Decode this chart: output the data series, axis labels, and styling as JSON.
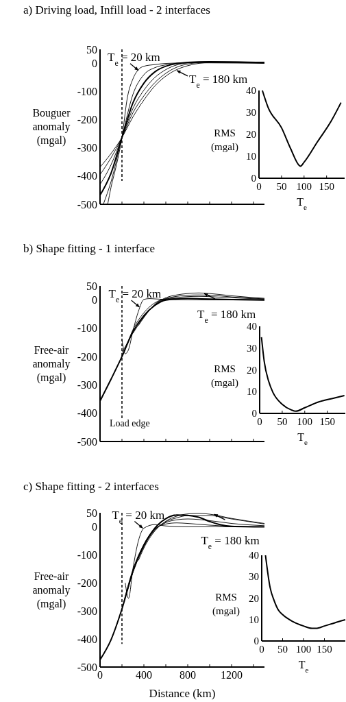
{
  "chart_data": [
    {
      "type": "line",
      "title": "a) Driving load, Infill load - 2 interfaces",
      "ylabel": "Bouguer anomaly (mgal)",
      "xlim": [
        0,
        1500
      ],
      "xticks": [
        {
          "value": 0,
          "label": null
        },
        {
          "value": 200,
          "label": null
        },
        {
          "value": 400,
          "label": null
        },
        {
          "value": 600,
          "label": null
        },
        {
          "value": 800,
          "label": null
        },
        {
          "value": 1000,
          "label": null
        },
        {
          "value": 1200,
          "label": null
        },
        {
          "value": 1400,
          "label": null
        }
      ],
      "ylim": [
        -500,
        50
      ],
      "yticks": [
        50,
        0,
        -100,
        -200,
        -300,
        -400,
        -500
      ],
      "tick_labels": "y",
      "series": [
        {
          "color": "#000000",
          "x": [
            0,
            100,
            200,
            300,
            400,
            500,
            600,
            800,
            1000,
            1500
          ],
          "values": [
            -468,
            -390,
            -263,
            -140,
            -70,
            -30,
            -10,
            4,
            6,
            3
          ]
        },
        {
          "color": "#000000",
          "x": [
            70,
            100,
            150,
            200,
            250,
            300,
            350,
            400,
            500,
            600,
            800,
            1000,
            1500
          ],
          "values": [
            -500,
            -440,
            -360,
            -263,
            -120,
            -55,
            -22,
            -10,
            -4,
            0,
            2,
            2,
            0
          ]
        },
        {
          "color": "#000000",
          "x": [
            30,
            100,
            200,
            300,
            400,
            500,
            600,
            800,
            1000,
            1500
          ],
          "values": [
            -500,
            -420,
            -263,
            -110,
            -40,
            -15,
            -5,
            3,
            4,
            2
          ]
        },
        {
          "color": "#000000",
          "x": [
            0,
            100,
            200,
            300,
            400,
            500,
            600,
            800,
            1000,
            1500
          ],
          "values": [
            -430,
            -360,
            -263,
            -160,
            -95,
            -50,
            -22,
            2,
            6,
            4
          ]
        },
        {
          "color": "#000000",
          "x": [
            0,
            100,
            200,
            300,
            400,
            500,
            600,
            800,
            1000,
            1500
          ],
          "values": [
            -395,
            -335,
            -263,
            -175,
            -115,
            -68,
            -35,
            -2,
            5,
            4
          ]
        },
        {
          "color": "#000000",
          "x": [
            0,
            100,
            200,
            300,
            400,
            500,
            600,
            800,
            1000,
            1500
          ],
          "values": [
            -368,
            -320,
            -263,
            -190,
            -130,
            -80,
            -45,
            -8,
            3,
            3
          ]
        }
      ],
      "ref_lines": [
        {
          "axis": "x",
          "value": 200,
          "line_style": "dashed"
        }
      ],
      "annotations": [
        {
          "text": "T$_{e}$ = 20 km",
          "x": 350,
          "y": -25
        },
        {
          "text": "T$_{e}$ = 180 km",
          "x": 700,
          "y": -25
        }
      ]
    },
    {
      "type": "line",
      "ylabel": "RMS (mgal)",
      "xlabel": "T$_{e}$",
      "xlim": [
        0,
        190
      ],
      "xticks": [
        0,
        50,
        100,
        150
      ],
      "ylim": [
        0,
        40
      ],
      "yticks": [
        0,
        10,
        20,
        30,
        40
      ],
      "series": [
        {
          "color": "#000000",
          "x": [
            7.5,
            20,
            50,
            70,
            90,
            92,
            100,
            130,
            160,
            182
          ],
          "values": [
            40,
            32.4,
            23,
            13.6,
            5.7,
            5.5,
            7.3,
            16.7,
            26,
            34.5
          ]
        }
      ]
    },
    {
      "type": "line",
      "title": "b) Shape fitting - 1 interface",
      "ylabel": "Free-air anomaly (mgal)",
      "xlim": [
        0,
        1500
      ],
      "xticks": [
        {
          "value": 0,
          "label": null
        },
        {
          "value": 200,
          "label": null
        },
        {
          "value": 400,
          "label": null
        },
        {
          "value": 600,
          "label": null
        },
        {
          "value": 800,
          "label": null
        },
        {
          "value": 1000,
          "label": null
        },
        {
          "value": 1200,
          "label": null
        },
        {
          "value": 1400,
          "label": null
        }
      ],
      "ylim": [
        -500,
        50
      ],
      "yticks": [
        50,
        0,
        -100,
        -200,
        -300,
        -400,
        -500
      ],
      "tick_labels": "y",
      "series": [
        {
          "color": "#000000",
          "x": [
            0,
            100,
            200,
            300,
            400,
            500,
            600,
            800,
            1000,
            1500
          ],
          "values": [
            -357,
            -280,
            -200,
            -112,
            -55,
            -19,
            0,
            5,
            3,
            0
          ]
        },
        {
          "color": "#000000",
          "x": [
            200,
            230,
            260,
            300,
            350,
            400,
            450,
            500,
            600,
            800,
            1500
          ],
          "values": [
            -140,
            -190,
            -175,
            -110,
            -40,
            2,
            5,
            4,
            2,
            1,
            0
          ]
        },
        {
          "color": "#000000",
          "x": [
            200,
            250,
            300,
            400,
            500,
            600,
            800,
            1000,
            1500
          ],
          "values": [
            -185,
            -150,
            -105,
            -45,
            -10,
            4,
            6,
            4,
            1
          ]
        },
        {
          "color": "#000000",
          "x": [
            200,
            300,
            400,
            500,
            600,
            700,
            800,
            900,
            1000,
            1200,
            1500
          ],
          "values": [
            -198,
            -113,
            -58,
            -18,
            3,
            9,
            12,
            13,
            12,
            8,
            3
          ]
        },
        {
          "color": "#000000",
          "x": [
            300,
            400,
            500,
            600,
            700,
            800,
            900,
            1000,
            1200,
            1500
          ],
          "values": [
            -118,
            -60,
            -16,
            5,
            13,
            17,
            18,
            17,
            11,
            4
          ]
        },
        {
          "color": "#000000",
          "x": [
            350,
            400,
            500,
            600,
            700,
            800,
            900,
            1000,
            1200,
            1500
          ],
          "values": [
            -90,
            -62,
            -15,
            8,
            18,
            23,
            25,
            23,
            15,
            6
          ]
        }
      ],
      "ref_lines": [
        {
          "axis": "x",
          "value": 200,
          "line_style": "dashed",
          "label": "Load edge"
        }
      ],
      "annotations": [
        {
          "text": "T$_{e}$ = 20 km",
          "x": 360,
          "y": -25
        },
        {
          "text": "T$_{e}$ = 180 km",
          "x": 950,
          "y": 23
        }
      ]
    },
    {
      "type": "line",
      "ylabel": "RMS (mgal)",
      "xlabel": "T$_{e}$",
      "xlim": [
        0,
        190
      ],
      "xticks": [
        0,
        50,
        100,
        150
      ],
      "ylim": [
        0,
        40
      ],
      "yticks": [
        0,
        10,
        20,
        30,
        40
      ],
      "series": [
        {
          "color": "#000000",
          "x": [
            4,
            10,
            20,
            30,
            50,
            70,
            80,
            100,
            130,
            160,
            188
          ],
          "values": [
            35,
            24,
            14.7,
            9.4,
            4.2,
            1.6,
            1,
            2.6,
            5.2,
            6.8,
            8.2
          ]
        }
      ]
    },
    {
      "type": "line",
      "title": "c) Shape fitting - 2 interfaces",
      "ylabel": "Free-air anomaly (mgal)",
      "xlabel": "Distance (km)",
      "xlim": [
        0,
        1500
      ],
      "xticks": [
        0,
        {
          "value": 200,
          "label": null
        },
        400,
        {
          "value": 600,
          "label": null
        },
        800,
        {
          "value": 1000,
          "label": null
        },
        1200,
        {
          "value": 1400,
          "label": null
        }
      ],
      "ylim": [
        -500,
        50
      ],
      "yticks": [
        50,
        0,
        -100,
        -200,
        -300,
        -400,
        -500
      ],
      "series": [
        {
          "color": "#000000",
          "x": [
            0,
            100,
            200,
            300,
            400,
            500,
            600,
            700,
            800,
            900,
            1000,
            1100,
            1200,
            1500
          ],
          "values": [
            -474,
            -403,
            -293,
            -159,
            -66,
            -5,
            29,
            42,
            41,
            34,
            19,
            7,
            2,
            0
          ]
        },
        {
          "color": "#000000",
          "x": [
            230,
            260,
            300,
            350,
            400,
            500,
            600,
            800,
            1500
          ],
          "values": [
            -200,
            -255,
            -150,
            -50,
            -5,
            8,
            3,
            0,
            0
          ]
        },
        {
          "color": "#000000",
          "x": [
            200,
            300,
            400,
            500,
            600,
            700,
            800,
            1000,
            1200,
            1500
          ],
          "values": [
            -292,
            -152,
            -62,
            -8,
            10,
            14,
            12,
            6,
            2,
            0
          ]
        },
        {
          "color": "#000000",
          "x": [
            300,
            400,
            500,
            600,
            700,
            800,
            1000,
            1200,
            1500
          ],
          "values": [
            -156,
            -64,
            -10,
            15,
            25,
            28,
            22,
            12,
            4
          ]
        },
        {
          "color": "#000000",
          "x": [
            250,
            300,
            400,
            500,
            600,
            700,
            800,
            1000,
            1200,
            1500
          ],
          "values": [
            -228,
            -163,
            -70,
            -12,
            18,
            32,
            40,
            40,
            28,
            10
          ]
        },
        {
          "color": "#000000",
          "x": [
            350,
            400,
            500,
            600,
            700,
            800,
            900,
            1000,
            1200,
            1500
          ],
          "values": [
            -120,
            -76,
            -15,
            20,
            38,
            46,
            48,
            45,
            30,
            12
          ]
        }
      ],
      "ref_lines": [
        {
          "axis": "x",
          "value": 200,
          "line_style": "dashed"
        }
      ],
      "annotations": [
        {
          "text": "T$_{e}$ = 20 km",
          "x": 390,
          "y": -5
        },
        {
          "text": "T$_{e}$ = 180 km",
          "x": 1040,
          "y": 45
        }
      ]
    },
    {
      "type": "line",
      "ylabel": "RMS (mgal)",
      "xlabel": "T$_{e}$",
      "xlim": [
        0,
        200
      ],
      "xticks": [
        0,
        50,
        100,
        150
      ],
      "ylim": [
        0,
        40
      ],
      "yticks": [
        0,
        10,
        20,
        30,
        40
      ],
      "series": [
        {
          "color": "#000000",
          "x": [
            9,
            20,
            30,
            40,
            50,
            75,
            100,
            120,
            130,
            150,
            175,
            200
          ],
          "values": [
            40,
            25,
            18.7,
            14.4,
            12.3,
            9,
            7,
            5.9,
            5.9,
            7,
            8.5,
            9.9
          ]
        }
      ]
    }
  ]
}
